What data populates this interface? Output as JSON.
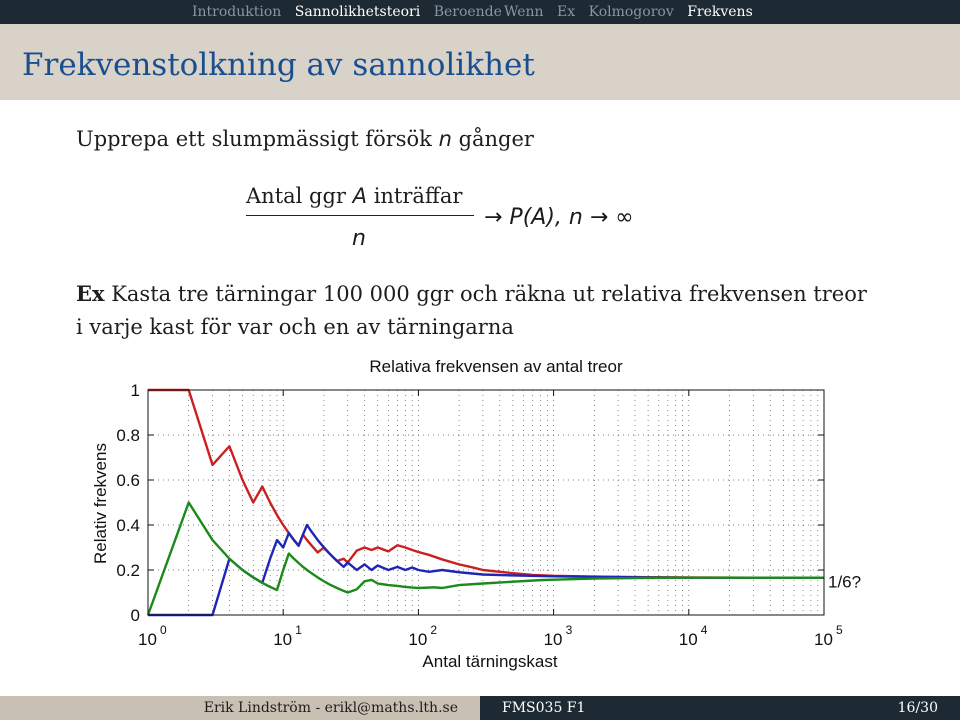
{
  "nav": {
    "left": [
      {
        "label": "Introduktion",
        "active": false
      },
      {
        "label": "Sannolikhetsteori",
        "active": true
      },
      {
        "label": "Beroende",
        "active": false
      }
    ],
    "right": [
      {
        "label": "Wenn",
        "active": false
      },
      {
        "label": "Ex",
        "active": false
      },
      {
        "label": "Kolmogorov",
        "active": false
      },
      {
        "label": "Frekvens",
        "active": true
      }
    ]
  },
  "frame_title": "Frekvenstolkning av sannolikhet",
  "intro": {
    "before": "Upprepa ett slumpmässigt försök ",
    "var": "n",
    "after": " gånger"
  },
  "formula": {
    "numerator_before": "Antal ggr ",
    "numerator_var": "A",
    "numerator_after": " inträffar",
    "denominator": "n",
    "rhs": "→ P(A),   n → ∞"
  },
  "example": {
    "label": "Ex",
    "line1": " Kasta tre tärningar 100 000 ggr och räkna ut relativa frekvensen treor",
    "line2": "i varje kast för var och en av tärningarna"
  },
  "chart_data": {
    "type": "line",
    "title": "Relativa frekvensen av antal treor",
    "xlabel": "Antal tärningskast",
    "ylabel": "Relativ frekvens",
    "xscale": "log",
    "xlim": [
      1,
      100000
    ],
    "ylim": [
      0,
      1
    ],
    "grid": true,
    "x_ticks": [
      {
        "base": "10",
        "exp": "0"
      },
      {
        "base": "10",
        "exp": "1"
      },
      {
        "base": "10",
        "exp": "2"
      },
      {
        "base": "10",
        "exp": "3"
      },
      {
        "base": "10",
        "exp": "4"
      },
      {
        "base": "10",
        "exp": "5"
      }
    ],
    "y_ticks": [
      "0",
      "0.2",
      "0.4",
      "0.6",
      "0.8",
      "1"
    ],
    "annotation": {
      "text": "1/6?",
      "x": 100000,
      "y": 0.1667
    },
    "series": [
      {
        "color": "#cc1f1f",
        "points": [
          [
            1,
            1
          ],
          [
            2,
            1
          ],
          [
            3,
            0.667
          ],
          [
            4,
            0.75
          ],
          [
            5,
            0.6
          ],
          [
            6,
            0.5
          ],
          [
            7,
            0.571
          ],
          [
            8,
            0.5
          ],
          [
            9,
            0.444
          ],
          [
            10,
            0.4
          ],
          [
            11,
            0.364
          ],
          [
            12,
            0.333
          ],
          [
            13,
            0.308
          ],
          [
            14,
            0.357
          ],
          [
            15,
            0.333
          ],
          [
            16,
            0.313
          ],
          [
            18,
            0.278
          ],
          [
            20,
            0.3
          ],
          [
            22,
            0.273
          ],
          [
            25,
            0.24
          ],
          [
            28,
            0.25
          ],
          [
            30,
            0.233
          ],
          [
            35,
            0.286
          ],
          [
            40,
            0.3
          ],
          [
            45,
            0.289
          ],
          [
            50,
            0.3
          ],
          [
            60,
            0.283
          ],
          [
            70,
            0.31
          ],
          [
            80,
            0.3
          ],
          [
            90,
            0.289
          ],
          [
            100,
            0.28
          ],
          [
            120,
            0.267
          ],
          [
            150,
            0.247
          ],
          [
            200,
            0.225
          ],
          [
            250,
            0.212
          ],
          [
            300,
            0.2
          ],
          [
            400,
            0.192
          ],
          [
            500,
            0.186
          ],
          [
            700,
            0.178
          ],
          [
            1000,
            0.174
          ],
          [
            2000,
            0.171
          ],
          [
            5000,
            0.168
          ],
          [
            10000,
            0.167
          ],
          [
            30000,
            0.166
          ],
          [
            100000,
            0.166
          ]
        ]
      },
      {
        "color": "#1f25b8",
        "points": [
          [
            1,
            0
          ],
          [
            2,
            0
          ],
          [
            3,
            0
          ],
          [
            4,
            0.25
          ],
          [
            5,
            0.2
          ],
          [
            6,
            0.167
          ],
          [
            7,
            0.143
          ],
          [
            8,
            0.25
          ],
          [
            9,
            0.333
          ],
          [
            10,
            0.3
          ],
          [
            11,
            0.364
          ],
          [
            12,
            0.333
          ],
          [
            13,
            0.308
          ],
          [
            14,
            0.357
          ],
          [
            15,
            0.4
          ],
          [
            16,
            0.375
          ],
          [
            18,
            0.333
          ],
          [
            20,
            0.3
          ],
          [
            22,
            0.273
          ],
          [
            25,
            0.24
          ],
          [
            28,
            0.214
          ],
          [
            30,
            0.233
          ],
          [
            35,
            0.2
          ],
          [
            40,
            0.225
          ],
          [
            45,
            0.2
          ],
          [
            50,
            0.22
          ],
          [
            60,
            0.2
          ],
          [
            70,
            0.214
          ],
          [
            80,
            0.2
          ],
          [
            90,
            0.211
          ],
          [
            100,
            0.2
          ],
          [
            120,
            0.192
          ],
          [
            150,
            0.2
          ],
          [
            200,
            0.19
          ],
          [
            300,
            0.18
          ],
          [
            500,
            0.176
          ],
          [
            1000,
            0.172
          ],
          [
            3000,
            0.168
          ],
          [
            10000,
            0.166
          ],
          [
            100000,
            0.166
          ]
        ]
      },
      {
        "color": "#1a8a1a",
        "points": [
          [
            1,
            0
          ],
          [
            2,
            0.5
          ],
          [
            3,
            0.333
          ],
          [
            4,
            0.25
          ],
          [
            5,
            0.2
          ],
          [
            6,
            0.167
          ],
          [
            7,
            0.143
          ],
          [
            8,
            0.125
          ],
          [
            9,
            0.111
          ],
          [
            10,
            0.2
          ],
          [
            11,
            0.273
          ],
          [
            12,
            0.25
          ],
          [
            13,
            0.231
          ],
          [
            14,
            0.214
          ],
          [
            15,
            0.2
          ],
          [
            16,
            0.188
          ],
          [
            18,
            0.167
          ],
          [
            20,
            0.15
          ],
          [
            22,
            0.136
          ],
          [
            25,
            0.12
          ],
          [
            28,
            0.107
          ],
          [
            30,
            0.1
          ],
          [
            35,
            0.114
          ],
          [
            40,
            0.15
          ],
          [
            45,
            0.156
          ],
          [
            50,
            0.14
          ],
          [
            60,
            0.133
          ],
          [
            70,
            0.129
          ],
          [
            80,
            0.125
          ],
          [
            90,
            0.122
          ],
          [
            100,
            0.12
          ],
          [
            130,
            0.123
          ],
          [
            150,
            0.12
          ],
          [
            200,
            0.133
          ],
          [
            300,
            0.14
          ],
          [
            500,
            0.148
          ],
          [
            800,
            0.155
          ],
          [
            1000,
            0.157
          ],
          [
            2000,
            0.162
          ],
          [
            5000,
            0.165
          ],
          [
            10000,
            0.166
          ],
          [
            100000,
            0.166
          ]
        ]
      }
    ]
  },
  "footer": {
    "author": "Erik Lindström - erikl@maths.lth.se",
    "course": "FMS035 F1",
    "page": "16/30"
  }
}
